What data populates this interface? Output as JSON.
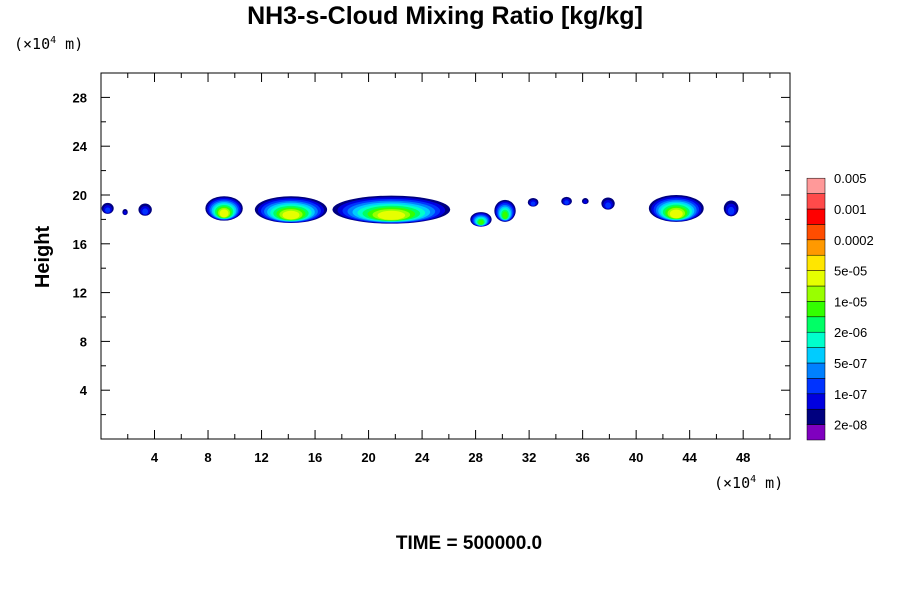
{
  "chart_data": {
    "type": "heatmap",
    "title": "NH3-s-Cloud Mixing Ratio [kg/kg]",
    "ylabel": "Height",
    "x_unit": {
      "prefix": "(×10",
      "exp": "4",
      "suffix": " m)"
    },
    "y_unit": {
      "prefix": "(×10",
      "exp": "4",
      "suffix": " m)"
    },
    "xlim": [
      0,
      51.5
    ],
    "ylim": [
      0,
      30
    ],
    "xticks": [
      4,
      8,
      12,
      16,
      20,
      24,
      28,
      32,
      36,
      40,
      44,
      48
    ],
    "yticks": [
      4,
      8,
      12,
      16,
      20,
      24,
      28
    ],
    "xtick_labels": [
      "4",
      "8",
      "12",
      "16",
      "20",
      "24",
      "28",
      "32",
      "36",
      "40",
      "44",
      "48"
    ],
    "ytick_labels": [
      "4",
      "8",
      "12",
      "16",
      "20",
      "24",
      "28"
    ],
    "time_label": "TIME = 500000.0",
    "colorbar": {
      "colors": [
        "#7f00bf",
        "#00007f",
        "#0000df",
        "#0033ff",
        "#0080ff",
        "#00ccff",
        "#00ffcc",
        "#00ff66",
        "#33ff00",
        "#99ff00",
        "#e6ff00",
        "#ffe600",
        "#ff9900",
        "#ff4d00",
        "#ff0000",
        "#ff4a4a",
        "#ff9999"
      ],
      "labels": [
        "2e-08",
        "1e-07",
        "5e-07",
        "2e-06",
        "1e-05",
        "5e-05",
        "0.0002",
        "0.001",
        "0.005"
      ]
    },
    "cloud_blobs": [
      {
        "x": 0.5,
        "y": 18.9,
        "w": 0.9,
        "h": 0.9,
        "level": 3
      },
      {
        "x": 1.8,
        "y": 18.6,
        "w": 0.4,
        "h": 0.5,
        "level": 2
      },
      {
        "x": 3.3,
        "y": 18.8,
        "w": 1.0,
        "h": 1.0,
        "level": 3
      },
      {
        "x": 9.2,
        "y": 18.9,
        "w": 2.8,
        "h": 2.0,
        "level": 10
      },
      {
        "x": 14.2,
        "y": 18.8,
        "w": 5.4,
        "h": 2.2,
        "level": 10
      },
      {
        "x": 21.7,
        "y": 18.8,
        "w": 8.8,
        "h": 2.3,
        "level": 10
      },
      {
        "x": 28.4,
        "y": 18.0,
        "w": 1.6,
        "h": 1.2,
        "level": 8
      },
      {
        "x": 30.2,
        "y": 18.7,
        "w": 1.6,
        "h": 1.8,
        "level": 8
      },
      {
        "x": 32.3,
        "y": 19.4,
        "w": 0.8,
        "h": 0.7,
        "level": 3
      },
      {
        "x": 34.8,
        "y": 19.5,
        "w": 0.8,
        "h": 0.7,
        "level": 3
      },
      {
        "x": 36.2,
        "y": 19.5,
        "w": 0.5,
        "h": 0.5,
        "level": 2
      },
      {
        "x": 37.9,
        "y": 19.3,
        "w": 1.0,
        "h": 1.0,
        "level": 3
      },
      {
        "x": 43.0,
        "y": 18.9,
        "w": 4.1,
        "h": 2.2,
        "level": 10
      },
      {
        "x": 47.1,
        "y": 18.9,
        "w": 1.1,
        "h": 1.3,
        "level": 3
      }
    ]
  }
}
